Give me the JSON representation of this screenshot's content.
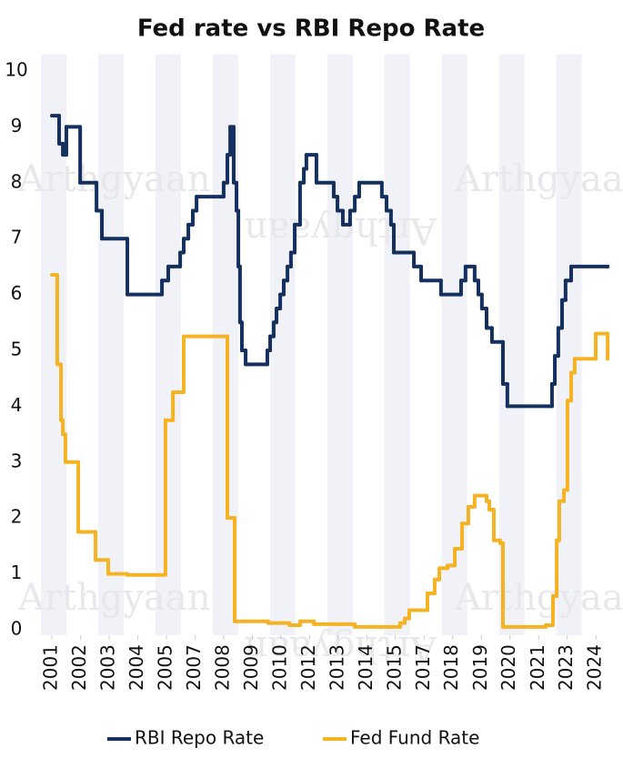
{
  "chart_data": {
    "type": "step",
    "title": "Fed rate vs RBI Repo Rate",
    "watermark": "Arthgyaan",
    "xlim": [
      2000.6,
      2025.0
    ],
    "ylim": [
      -0.1,
      10.3
    ],
    "yticks": [
      0,
      1,
      2,
      3,
      4,
      5,
      6,
      7,
      8,
      9,
      10
    ],
    "xticks": [
      {
        "value": 2001.08,
        "label": "2001"
      },
      {
        "value": 2002.31,
        "label": "2002"
      },
      {
        "value": 2003.53,
        "label": "2003"
      },
      {
        "value": 2004.76,
        "label": "2004"
      },
      {
        "value": 2005.98,
        "label": "2005"
      },
      {
        "value": 2007.21,
        "label": "2007"
      },
      {
        "value": 2008.43,
        "label": "2008"
      },
      {
        "value": 2009.66,
        "label": "2009"
      },
      {
        "value": 2010.88,
        "label": "2010"
      },
      {
        "value": 2012.11,
        "label": "2012"
      },
      {
        "value": 2013.33,
        "label": "2013"
      },
      {
        "value": 2014.56,
        "label": "2014"
      },
      {
        "value": 2015.78,
        "label": "2015"
      },
      {
        "value": 2017.01,
        "label": "2017"
      },
      {
        "value": 2018.23,
        "label": "2018"
      },
      {
        "value": 2019.46,
        "label": "2019"
      },
      {
        "value": 2020.68,
        "label": "2020"
      },
      {
        "value": 2021.91,
        "label": "2021"
      },
      {
        "value": 2023.13,
        "label": "2023"
      },
      {
        "value": 2024.36,
        "label": "2024"
      }
    ],
    "legend": "bottom",
    "series": [
      {
        "name": "RBI Repo Rate",
        "color": "#14305e",
        "x": [
          2001.08,
          2001.39,
          2001.55,
          2001.7,
          2002.29,
          2002.99,
          2003.22,
          2004.31,
          2005.79,
          2006.06,
          2006.57,
          2006.72,
          2006.92,
          2007.11,
          2007.27,
          2008.43,
          2008.59,
          2008.71,
          2008.86,
          2008.98,
          2009.06,
          2009.13,
          2009.21,
          2009.37,
          2009.52,
          2010.3,
          2010.42,
          2010.57,
          2010.69,
          2010.85,
          2011.0,
          2011.16,
          2011.31,
          2011.47,
          2011.7,
          2011.86,
          2011.97,
          2012.4,
          2013.14,
          2013.3,
          2013.53,
          2013.84,
          2014.04,
          2014.23,
          2015.2,
          2015.4,
          2015.59,
          2015.71,
          2016.57,
          2016.88,
          2017.73,
          2018.59,
          2018.78,
          2019.17,
          2019.33,
          2019.48,
          2019.68,
          2019.91,
          2020.38,
          2020.57,
          2022.48,
          2022.6,
          2022.75,
          2022.91,
          2023.06,
          2023.3,
          2024.86
        ],
        "values": [
          9.2,
          8.7,
          8.5,
          9.0,
          8.0,
          7.5,
          7.0,
          6.0,
          6.25,
          6.5,
          6.75,
          7.0,
          7.25,
          7.5,
          7.75,
          8.0,
          8.5,
          9.0,
          8.0,
          7.5,
          6.5,
          5.5,
          5.0,
          4.75,
          4.75,
          5.0,
          5.25,
          5.5,
          5.75,
          6.0,
          6.25,
          6.5,
          6.75,
          7.25,
          8.0,
          8.25,
          8.5,
          8.0,
          7.75,
          7.5,
          7.25,
          7.5,
          7.75,
          8.0,
          7.75,
          7.5,
          7.25,
          6.75,
          6.5,
          6.25,
          6.0,
          6.25,
          6.5,
          6.25,
          6.0,
          5.75,
          5.4,
          5.15,
          4.4,
          4.0,
          4.4,
          4.9,
          5.4,
          5.9,
          6.25,
          6.5,
          6.5
        ]
      },
      {
        "name": "Fed Fund Rate",
        "color": "#f5b324",
        "x": [
          2001.08,
          2001.31,
          2001.47,
          2001.55,
          2001.66,
          2002.21,
          2002.95,
          2003.49,
          2004.31,
          2005.94,
          2006.26,
          2006.72,
          2008.59,
          2008.9,
          2010.34,
          2011.24,
          2011.7,
          2012.29,
          2013.34,
          2014.04,
          2015.98,
          2016.18,
          2016.37,
          2017.15,
          2017.46,
          2017.66,
          2018.01,
          2018.32,
          2018.63,
          2018.9,
          2019.17,
          2019.68,
          2019.8,
          2019.99,
          2020.26,
          2020.38,
          2022.21,
          2022.52,
          2022.68,
          2022.79,
          2022.99,
          2023.14,
          2023.3,
          2023.45,
          2024.35,
          2024.86
        ],
        "values": [
          6.35,
          4.75,
          3.75,
          3.5,
          3.0,
          1.75,
          1.25,
          1.0,
          0.98,
          3.75,
          4.25,
          5.25,
          2.0,
          0.15,
          0.12,
          0.08,
          0.15,
          0.1,
          0.1,
          0.05,
          0.12,
          0.2,
          0.35,
          0.65,
          0.9,
          1.1,
          1.15,
          1.45,
          1.9,
          2.2,
          2.4,
          2.3,
          2.15,
          1.6,
          1.55,
          0.05,
          0.08,
          0.6,
          1.6,
          2.3,
          2.5,
          4.1,
          4.6,
          4.85,
          5.3,
          4.85
        ]
      }
    ]
  }
}
